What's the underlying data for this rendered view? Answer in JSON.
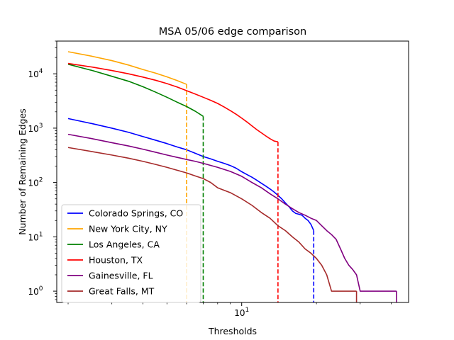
{
  "chart_data": {
    "type": "line",
    "title": "MSA 05/06 edge comparison",
    "xlabel": "Thresholds",
    "ylabel": "Number of Remaining Edges",
    "xscale": "log",
    "yscale": "log",
    "xlim": [
      1.8,
      47
    ],
    "ylim": [
      0.62,
      40000
    ],
    "x_ticks": [
      {
        "value": 10,
        "label": "10^1"
      }
    ],
    "y_ticks": [
      {
        "value": 1,
        "label": "10^0"
      },
      {
        "value": 10,
        "label": "10^1"
      },
      {
        "value": 100,
        "label": "10^2"
      },
      {
        "value": 1000,
        "label": "10^3"
      },
      {
        "value": 10000,
        "label": "10^4"
      }
    ],
    "grid": false,
    "legend_position": "lower-left",
    "series": [
      {
        "name": "Colorado Springs, CO",
        "color": "#0000ff",
        "x": [
          2.0,
          2.5,
          3.0,
          3.5,
          4.0,
          4.5,
          5.0,
          5.5,
          6.0,
          6.5,
          7.0,
          7.5,
          8.0,
          8.5,
          9.0,
          9.5,
          10.0,
          10.5,
          11.0,
          11.5,
          12.0,
          12.5,
          13.0,
          13.5,
          14.0,
          14.5,
          15.0,
          15.5,
          16.0,
          16.5,
          17.0,
          17.5,
          18.0,
          18.5,
          19.0,
          19.5
        ],
        "y": [
          1500,
          1210,
          1000,
          840,
          700,
          600,
          520,
          450,
          400,
          345,
          300,
          272,
          245,
          225,
          205,
          183,
          158,
          140,
          125,
          110,
          97,
          86,
          76,
          67,
          58,
          50,
          42,
          36,
          30,
          27,
          26,
          25,
          22,
          20,
          17,
          13
        ],
        "drop_to": 0.62,
        "drop_style": "dashed"
      },
      {
        "name": "New York City, NY",
        "color": "#ffa500",
        "x": [
          2.0,
          2.5,
          3.0,
          3.5,
          4.0,
          4.5,
          5.0,
          5.5,
          6.0
        ],
        "y": [
          25500,
          21000,
          17500,
          14500,
          12000,
          10300,
          8800,
          7500,
          6400
        ],
        "drop_to": 0.62,
        "drop_style": "dashed"
      },
      {
        "name": "Los Angeles, CA",
        "color": "#008000",
        "x": [
          2.0,
          2.5,
          3.0,
          3.5,
          4.0,
          4.5,
          5.0,
          5.5,
          6.0,
          6.5,
          7.0
        ],
        "y": [
          15000,
          11500,
          9000,
          7300,
          5800,
          4600,
          3700,
          3000,
          2500,
          2050,
          1650
        ],
        "drop_to": 0.62,
        "drop_style": "dashed"
      },
      {
        "name": "Houston, TX",
        "color": "#ff0000",
        "x": [
          2.0,
          2.5,
          3.0,
          3.5,
          4.0,
          4.5,
          5.0,
          5.5,
          6.0,
          6.5,
          7.0,
          7.5,
          8.0,
          8.5,
          9.0,
          9.5,
          10.0,
          10.5,
          11.0,
          11.5,
          12.0,
          12.5,
          13.0,
          13.5,
          14.0
        ],
        "y": [
          15500,
          13300,
          11500,
          10000,
          8700,
          7600,
          6600,
          5700,
          4900,
          4250,
          3700,
          3250,
          2850,
          2450,
          2100,
          1800,
          1530,
          1300,
          1100,
          940,
          820,
          720,
          640,
          580,
          560
        ],
        "drop_to": 0.62,
        "drop_style": "dashed"
      },
      {
        "name": "Gainesville, FL",
        "color": "#800080",
        "x": [
          2.0,
          2.5,
          3.0,
          3.5,
          4.0,
          4.5,
          5.0,
          5.5,
          6.0,
          6.5,
          7.0,
          8.0,
          9.0,
          10.0,
          11.0,
          12.0,
          13.0,
          14.0,
          15.0,
          16.0,
          17.0,
          18.0,
          19.0,
          20.0,
          21.0,
          22.0,
          23.0,
          24.0,
          25.0,
          26.0,
          27.0,
          28.0,
          29.0,
          30.0,
          32.0,
          35.0,
          38.0,
          40.0,
          42.0
        ],
        "y": [
          770,
          640,
          540,
          470,
          410,
          360,
          320,
          290,
          265,
          245,
          225,
          190,
          160,
          130,
          100,
          80,
          62,
          50,
          40,
          33,
          28,
          25,
          22,
          20,
          16,
          13,
          11,
          9,
          6,
          4,
          3,
          2.5,
          2,
          1,
          1,
          1,
          1,
          1,
          1
        ],
        "drop_to": 0.62,
        "drop_style": "solid"
      },
      {
        "name": "Great Falls, MT",
        "color": "#a52a2a",
        "x": [
          2.0,
          2.5,
          3.0,
          3.5,
          4.0,
          4.5,
          5.0,
          5.5,
          6.0,
          6.5,
          7.0,
          7.5,
          8.0,
          9.0,
          10.0,
          11.0,
          12.0,
          13.0,
          14.0,
          15.0,
          16.0,
          17.0,
          18.0,
          19.0,
          20.0,
          21.0,
          22.0,
          23.0,
          25.0,
          27.0,
          29.0
        ],
        "y": [
          440,
          370,
          320,
          280,
          245,
          215,
          190,
          168,
          150,
          132,
          118,
          100,
          80,
          65,
          50,
          38,
          28,
          22,
          16,
          13,
          10,
          8,
          6,
          5,
          4,
          3,
          2,
          1,
          1,
          1,
          1
        ],
        "drop_to": 0.62,
        "drop_style": "solid"
      }
    ]
  }
}
